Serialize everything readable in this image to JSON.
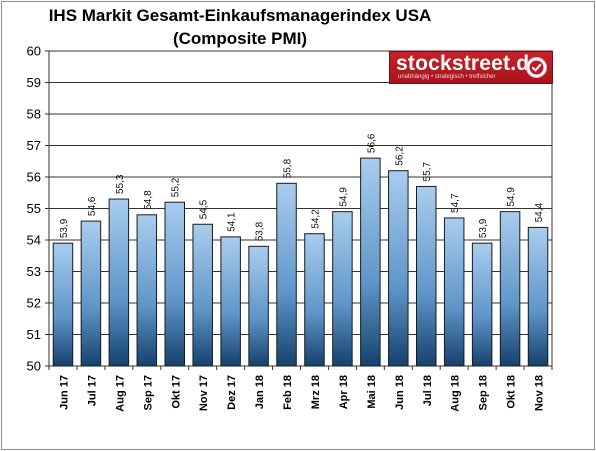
{
  "chart_data": {
    "type": "bar",
    "title": "IHS Markit Gesamt-Einkaufsmanagerindex USA",
    "subtitle": "(Composite PMI)",
    "xlabel": "",
    "ylabel": "",
    "categories": [
      "Jun 17",
      "Jul 17",
      "Aug 17",
      "Sep 17",
      "Okt 17",
      "Nov 17",
      "Dez 17",
      "Jan 18",
      "Feb 18",
      "Mrz 18",
      "Apr 18",
      "Mai 18",
      "Jun 18",
      "Jul 18",
      "Aug 18",
      "Sep 18",
      "Okt 18",
      "Nov 18"
    ],
    "values": [
      53.9,
      54.6,
      55.3,
      54.8,
      55.2,
      54.5,
      54.1,
      53.8,
      55.8,
      54.2,
      54.9,
      56.6,
      56.2,
      55.7,
      54.7,
      53.9,
      54.9,
      54.4
    ],
    "data_labels": [
      "53,9",
      "54,6",
      "55,3",
      "54,8",
      "55,2",
      "54,5",
      "54,1",
      "53,8",
      "55,8",
      "54,2",
      "54,9",
      "56,6",
      "56,2",
      "55,7",
      "54,7",
      "53,9",
      "54,9",
      "54,4"
    ],
    "ylim": [
      50,
      60
    ],
    "y_ticks": [
      "50",
      "51",
      "52",
      "53",
      "54",
      "55",
      "56",
      "57",
      "58",
      "59",
      "60"
    ],
    "grid": true,
    "legend": "none",
    "colors": {
      "bar_top": "#a9cdee",
      "bar_bottom": "#15416d",
      "plot_background": "#ffffff",
      "grid": "#333333"
    }
  },
  "logo": {
    "name": "stockstreet.de",
    "tagline": "unabhängig • strategisch • treffsicher",
    "icon": "checkmark-icon",
    "color": "#c0192b"
  }
}
